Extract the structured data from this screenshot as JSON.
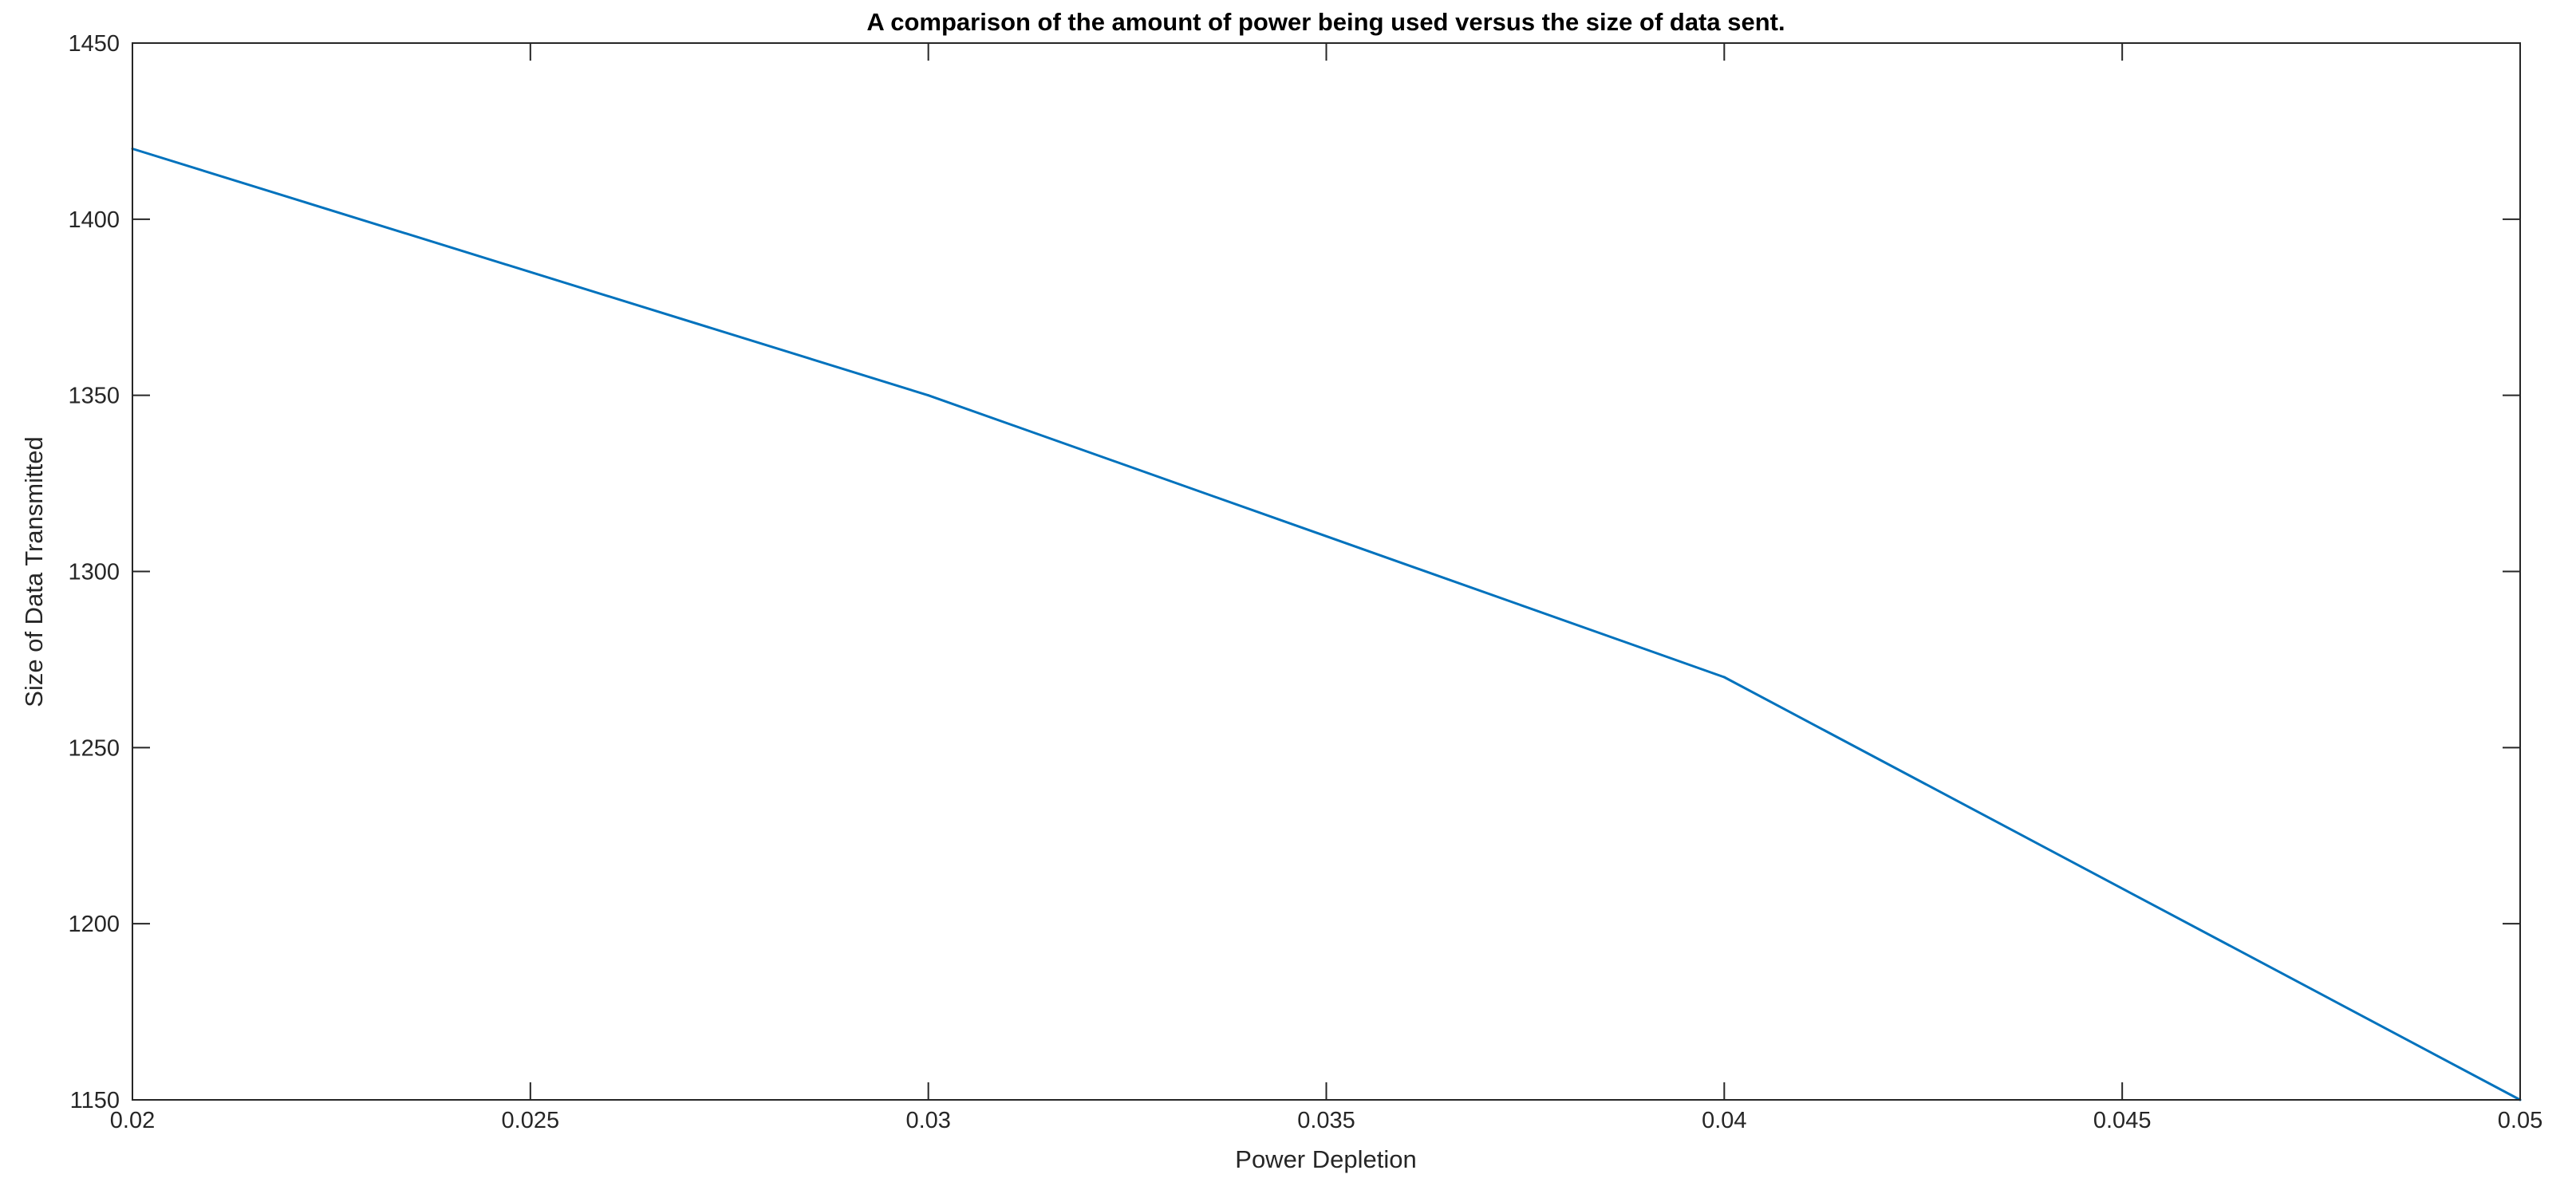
{
  "chart_data": {
    "type": "line",
    "title": "A comparison of the amount of power being used versus the size of data sent.",
    "xlabel": "Power Depletion",
    "ylabel": "Size of Data Transmitted",
    "xlim": [
      0.02,
      0.05
    ],
    "ylim": [
      1150,
      1450
    ],
    "x_ticks": [
      "0.02",
      "0.025",
      "0.03",
      "0.035",
      "0.04",
      "0.045",
      "0.05"
    ],
    "y_ticks": [
      "1150",
      "1200",
      "1250",
      "1300",
      "1350",
      "1400",
      "1450"
    ],
    "grid": false,
    "series": [
      {
        "color": "#0072BD",
        "x": [
          0.02,
          0.03,
          0.04,
          0.05
        ],
        "y": [
          1420,
          1350,
          1270,
          1150
        ]
      }
    ]
  }
}
